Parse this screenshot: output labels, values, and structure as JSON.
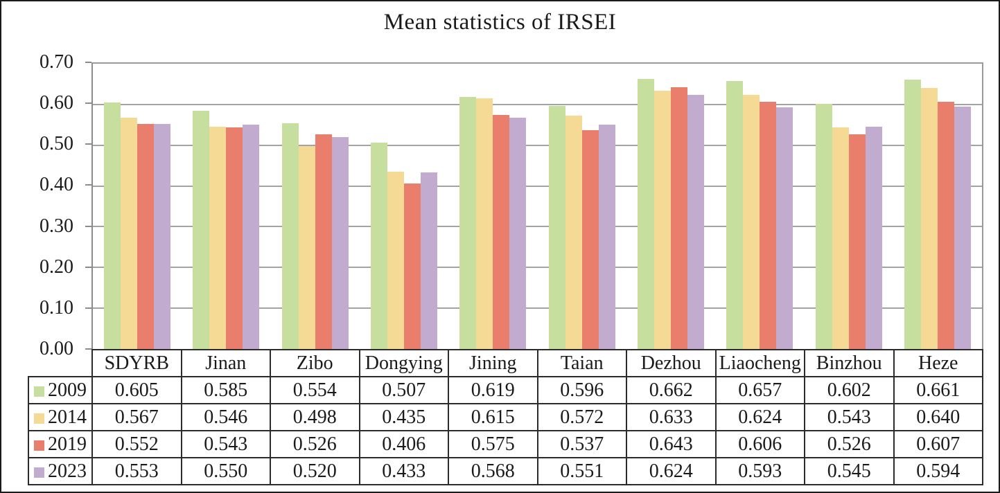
{
  "chart_data": {
    "type": "bar",
    "title": "Mean statistics of IRSEI",
    "categories": [
      "SDYRB",
      "Jinan",
      "Zibo",
      "Dongying",
      "Jining",
      "Taian",
      "Dezhou",
      "Liaocheng",
      "Binzhou",
      "Heze"
    ],
    "series": [
      {
        "name": "2009",
        "color": "#c6df9f",
        "values": [
          0.605,
          0.585,
          0.554,
          0.507,
          0.619,
          0.596,
          0.662,
          0.657,
          0.602,
          0.661
        ]
      },
      {
        "name": "2014",
        "color": "#f4da95",
        "values": [
          0.567,
          0.546,
          0.498,
          0.435,
          0.615,
          0.572,
          0.633,
          0.624,
          0.543,
          0.64
        ]
      },
      {
        "name": "2019",
        "color": "#e97e6d",
        "values": [
          0.552,
          0.543,
          0.526,
          0.406,
          0.575,
          0.537,
          0.643,
          0.606,
          0.526,
          0.607
        ]
      },
      {
        "name": "2023",
        "color": "#c1abce",
        "values": [
          0.553,
          0.55,
          0.52,
          0.433,
          0.568,
          0.551,
          0.624,
          0.593,
          0.545,
          0.594
        ]
      }
    ],
    "ylim": [
      0,
      0.7
    ],
    "ytick_step": 0.1,
    "yticks": [
      "0.70",
      "0.60",
      "0.50",
      "0.40",
      "0.30",
      "0.20",
      "0.10",
      "0.00"
    ],
    "value_decimals": 3,
    "grid": "horizontal",
    "legend_position": "table-row-headers",
    "colors": {
      "gridline": "#a3a3a3",
      "axis": "#8c8c8c",
      "table_border": "#2b2b2b",
      "text": "#1a1a1a"
    }
  }
}
